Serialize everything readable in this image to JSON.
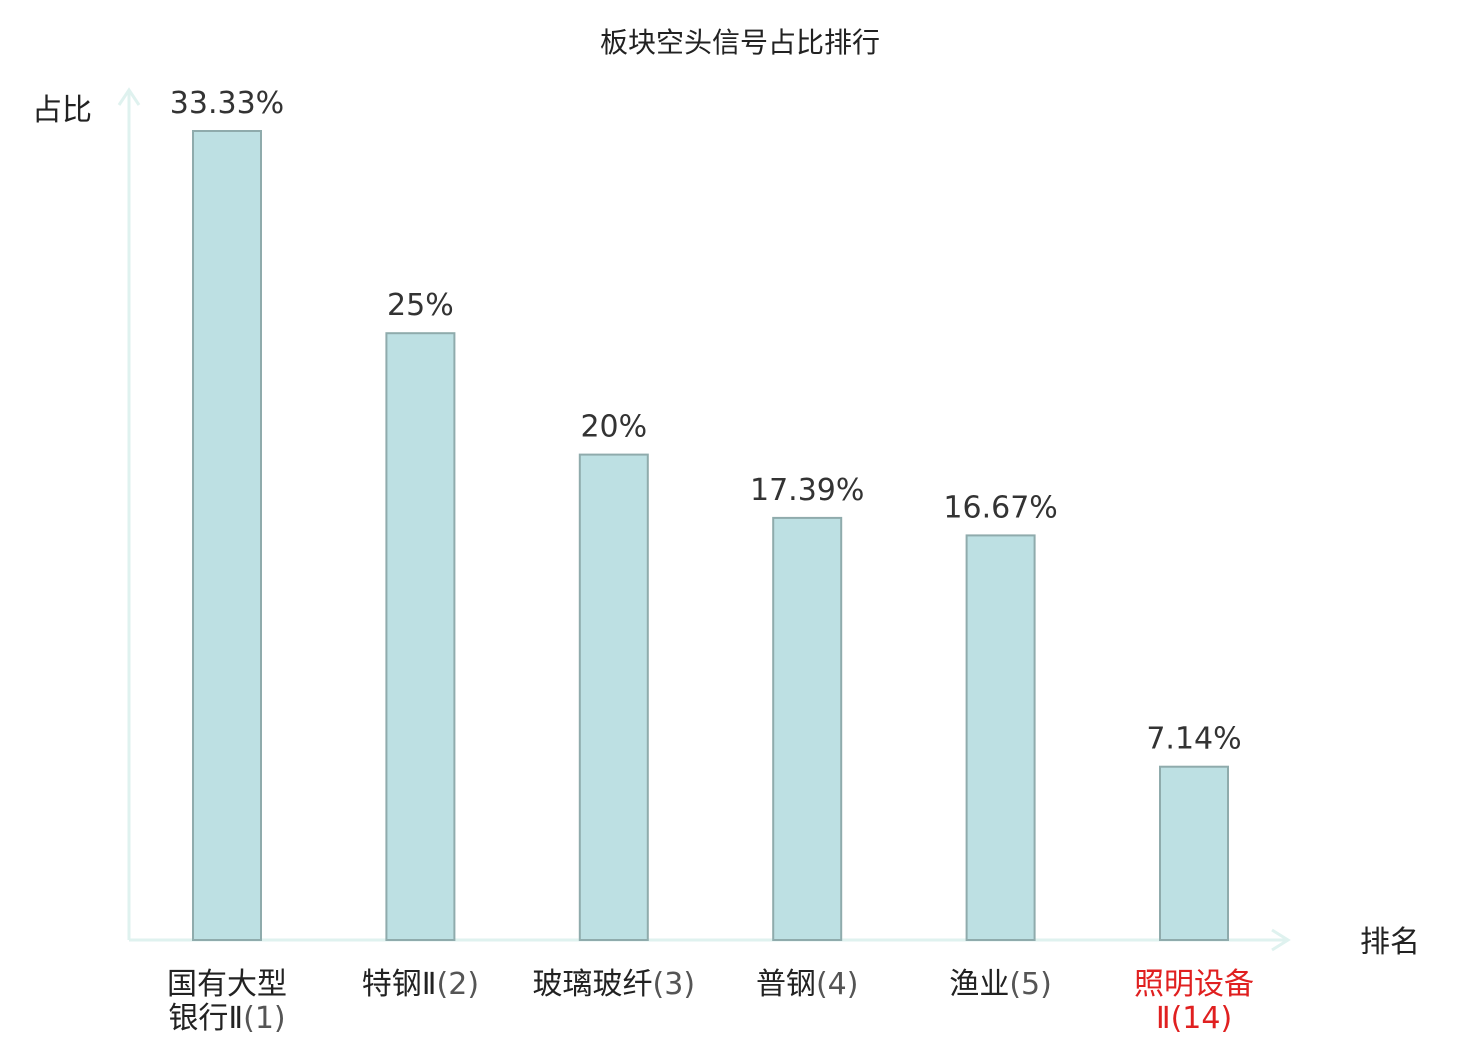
{
  "chart_data": {
    "type": "bar",
    "title": "板块空头信号占比排行",
    "xlabel": "排名",
    "ylabel": "占比",
    "ylim": [
      0,
      33.33
    ],
    "grid": false,
    "categories": [
      {
        "lines": [
          {
            "name": "国有大型"
          },
          {
            "name": "银行Ⅱ",
            "rank": "(1)"
          }
        ],
        "highlight": false
      },
      {
        "lines": [
          {
            "name": "特钢Ⅱ",
            "rank": "(2)"
          }
        ],
        "highlight": false
      },
      {
        "lines": [
          {
            "name": "玻璃玻纤",
            "rank": "(3)"
          }
        ],
        "highlight": false
      },
      {
        "lines": [
          {
            "name": "普钢",
            "rank": "(4)"
          }
        ],
        "highlight": false
      },
      {
        "lines": [
          {
            "name": "渔业",
            "rank": "(5)"
          }
        ],
        "highlight": false
      },
      {
        "lines": [
          {
            "name": "照明设备"
          },
          {
            "name": "Ⅱ",
            "rank": "(14)"
          }
        ],
        "highlight": true
      }
    ],
    "values": [
      33.33,
      25,
      20,
      17.39,
      16.67,
      7.14
    ],
    "value_labels": [
      "33.33%",
      "25%",
      "20%",
      "17.39%",
      "16.67%",
      "7.14%"
    ],
    "colors": {
      "bar_fill": "#bde0e3",
      "bar_stroke": "#8fabac",
      "axis": "#dff2ef",
      "highlight_label": "#e02020"
    }
  }
}
